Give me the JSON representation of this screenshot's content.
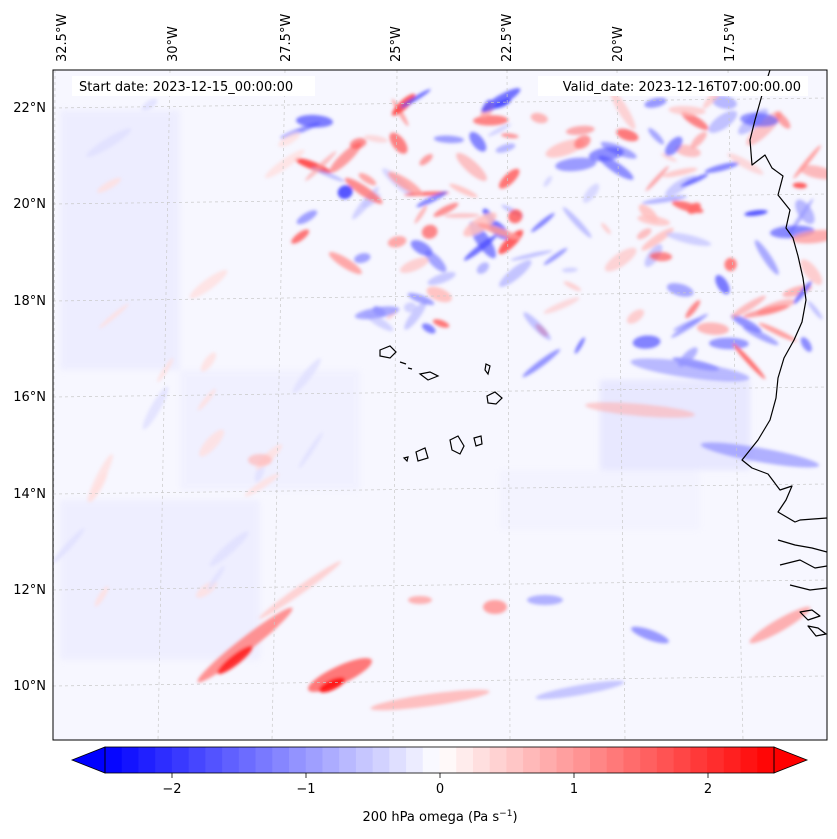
{
  "map": {
    "start_date_text": "Start date: 2023-12-15_00:00:00",
    "valid_date_text": "Valid_date: 2023-12-16T07:00:00.00",
    "lon_labels": [
      "32.5°W",
      "30°W",
      "27.5°W",
      "25°W",
      "22.5°W",
      "20°W",
      "17.5°W"
    ],
    "lat_labels": [
      "22°N",
      "20°N",
      "18°N",
      "16°N",
      "14°N",
      "12°N",
      "10°N"
    ],
    "colorbar": {
      "label": "200 hPa omega (Pa s",
      "label_exp": "−1",
      "label_close": ")",
      "ticks": [
        "−2",
        "−1",
        "0",
        "1",
        "2"
      ],
      "colormap": "bwr",
      "vmin": -2.5,
      "vmax": 2.5,
      "extend": "both"
    },
    "colors": {
      "negative": "#0000ff",
      "neutral": "#ffffff",
      "positive": "#ff0000",
      "coast": "#000000",
      "grid": "#c8c8c8"
    }
  }
}
